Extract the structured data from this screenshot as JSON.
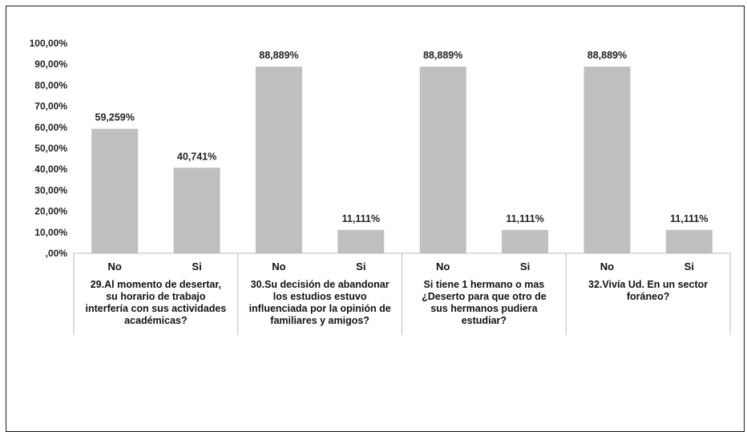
{
  "chart_data": {
    "type": "bar",
    "title": "",
    "xlabel": "",
    "ylabel": "",
    "ylim": [
      0,
      100
    ],
    "y_ticks": [
      "100,00%",
      "90,00%",
      "80,00%",
      "70,00%",
      "60,00%",
      "50,00%",
      "40,00%",
      "30,00%",
      "20,00%",
      "10,00%",
      ",00%"
    ],
    "y_tick_values": [
      100,
      90,
      80,
      70,
      60,
      50,
      40,
      30,
      20,
      10,
      0
    ],
    "grid": false,
    "legend": "none",
    "bar_color": "#bfbfbf",
    "groups": [
      {
        "question_lines": [
          "29.Al momento de desertar,",
          "su horario de trabajo",
          "interfería con sus actividades",
          "académicas?"
        ],
        "bars": [
          {
            "category": "No",
            "value": 59.259,
            "label": "59,259%"
          },
          {
            "category": "Si",
            "value": 40.741,
            "label": "40,741%"
          }
        ]
      },
      {
        "question_lines": [
          "30.Su decisión de abandonar",
          "los estudios estuvo",
          "influenciada por la opinión de",
          "familiares y amigos?"
        ],
        "bars": [
          {
            "category": "No",
            "value": 88.889,
            "label": "88,889%"
          },
          {
            "category": "Si",
            "value": 11.111,
            "label": "11,111%"
          }
        ]
      },
      {
        "question_lines": [
          "Si tiene 1 hermano o mas",
          "¿Deserto para que otro de",
          "sus hermanos pudiera",
          "estudiar?"
        ],
        "bars": [
          {
            "category": "No",
            "value": 88.889,
            "label": "88,889%"
          },
          {
            "category": "Si",
            "value": 11.111,
            "label": "11,111%"
          }
        ]
      },
      {
        "question_lines": [
          "32.Vivía Ud. En un sector",
          "foráneo?"
        ],
        "bars": [
          {
            "category": "No",
            "value": 88.889,
            "label": "88,889%"
          },
          {
            "category": "Si",
            "value": 11.111,
            "label": "11,111%"
          }
        ]
      }
    ]
  }
}
